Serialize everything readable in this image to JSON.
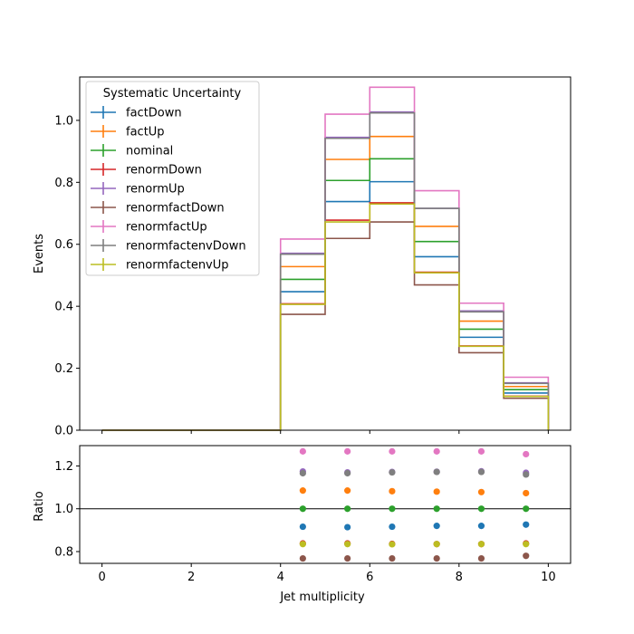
{
  "chart_data": {
    "type": "step",
    "xlabel": "Jet multiplicity",
    "top_ylabel": "Events",
    "bottom_ylabel": "Ratio",
    "xlim": [
      -0.5,
      10.5
    ],
    "top_ylim": [
      0.0,
      1.14
    ],
    "bottom_ylim": [
      0.745,
      1.295
    ],
    "xticks": [
      0,
      2,
      4,
      6,
      8,
      10
    ],
    "top_yticks": [
      0.0,
      0.2,
      0.4,
      0.6,
      0.8,
      1.0
    ],
    "bottom_yticks": [
      0.8,
      1.0,
      1.2
    ],
    "ratio_reference": 1.0,
    "legend_title": "Systematic Uncertainty",
    "legend_position": "upper-left",
    "bin_edges": [
      0,
      1,
      2,
      3,
      4,
      5,
      6,
      7,
      8,
      9,
      10
    ],
    "series": [
      {
        "name": "factDown",
        "color": "#1f77b4",
        "values": [
          0,
          0,
          0,
          0,
          0.447,
          0.738,
          0.802,
          0.56,
          0.3,
          0.12
        ],
        "ratio": [
          null,
          null,
          null,
          null,
          0.916,
          0.914,
          0.916,
          0.92,
          0.92,
          0.926
        ]
      },
      {
        "name": "factUp",
        "color": "#ff7f0e",
        "values": [
          0,
          0,
          0,
          0,
          0.528,
          0.874,
          0.948,
          0.658,
          0.352,
          0.141
        ],
        "ratio": [
          null,
          null,
          null,
          null,
          1.085,
          1.085,
          1.082,
          1.08,
          1.078,
          1.073
        ]
      },
      {
        "name": "nominal",
        "color": "#2ca02c",
        "values": [
          0,
          0,
          0,
          0,
          0.487,
          0.806,
          0.876,
          0.609,
          0.326,
          0.131
        ],
        "ratio": [
          null,
          null,
          null,
          null,
          1.0,
          1.0,
          1.0,
          1.0,
          1.0,
          1.0
        ]
      },
      {
        "name": "renormDown",
        "color": "#d62728",
        "values": [
          0,
          0,
          0,
          0,
          0.408,
          0.678,
          0.734,
          0.51,
          0.272,
          0.11
        ],
        "ratio": [
          null,
          null,
          null,
          null,
          0.838,
          0.838,
          0.836,
          0.835,
          0.835,
          0.838
        ]
      },
      {
        "name": "renormUp",
        "color": "#9467bd",
        "values": [
          0,
          0,
          0,
          0,
          0.571,
          0.945,
          1.027,
          0.716,
          0.385,
          0.153
        ],
        "ratio": [
          null,
          null,
          null,
          null,
          1.174,
          1.17,
          1.172,
          1.173,
          1.175,
          1.168
        ]
      },
      {
        "name": "renormfactDown",
        "color": "#8c564b",
        "values": [
          0,
          0,
          0,
          0,
          0.374,
          0.619,
          0.672,
          0.469,
          0.25,
          0.103
        ],
        "ratio": [
          null,
          null,
          null,
          null,
          0.768,
          0.768,
          0.768,
          0.768,
          0.768,
          0.78
        ]
      },
      {
        "name": "renormfactUp",
        "color": "#e377c2",
        "values": [
          0,
          0,
          0,
          0,
          0.617,
          1.02,
          1.107,
          0.773,
          0.41,
          0.171
        ],
        "ratio": [
          null,
          null,
          null,
          null,
          1.268,
          1.268,
          1.268,
          1.268,
          1.268,
          1.255
        ]
      },
      {
        "name": "renormfactenvDown",
        "color": "#7f7f7f",
        "values": [
          0,
          0,
          0,
          0,
          0.568,
          0.942,
          1.024,
          0.716,
          0.382,
          0.151
        ],
        "ratio": [
          null,
          null,
          null,
          null,
          1.166,
          1.166,
          1.17,
          1.172,
          1.172,
          1.16
        ]
      },
      {
        "name": "renormfactenvUp",
        "color": "#bcbd22",
        "values": [
          0,
          0,
          0,
          0,
          0.406,
          0.672,
          0.73,
          0.508,
          0.271,
          0.109
        ],
        "ratio": [
          null,
          null,
          null,
          null,
          0.835,
          0.835,
          0.834,
          0.835,
          0.835,
          0.835
        ]
      }
    ]
  }
}
